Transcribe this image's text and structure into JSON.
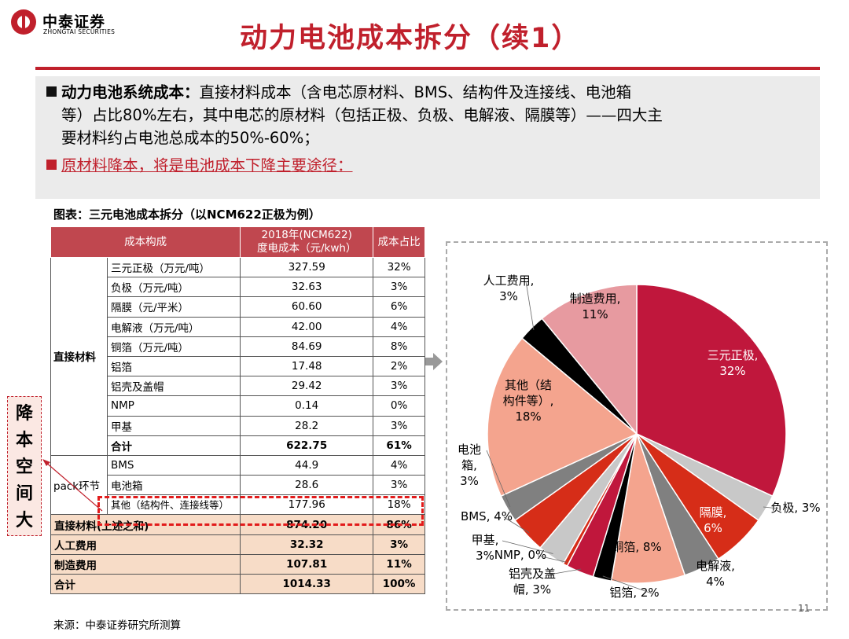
{
  "header": {
    "logo_cn": "中泰证券",
    "logo_en": "ZHONGTAI SECURITIES",
    "title": "动力电池成本拆分（续1）"
  },
  "summary": {
    "line1_bold": "动力电池系统成本：",
    "line1_rest": "直接材料成本（含电芯原材料、BMS、结构件及连接线、电池箱",
    "line2": "等）占比80%左右，其中电芯的原材料（包括正极、负极、电解液、隔膜等）——四大主",
    "line3": "要材料约占电池总成本的50%-60%；",
    "line4": "原材料降本，将是电池成本下降主要途径："
  },
  "table": {
    "caption": "图表：三元电池成本拆分（以NCM622正极为例）",
    "headers": [
      "成本构成",
      "2018年(NCM622)度电成本（元/kwh）",
      "成本占比"
    ],
    "header_col2_line1": "2018年(NCM622)",
    "header_col2_line2": "度电成本（元/kwh）",
    "group_direct": "直接材料",
    "group_pack": "pack环节",
    "direct_rows": [
      {
        "name": "三元正极（万元/吨）",
        "cost": "327.59",
        "pct": "32%"
      },
      {
        "name": "负极（万元/吨）",
        "cost": "32.63",
        "pct": "3%"
      },
      {
        "name": "隔膜（元/平米）",
        "cost": "60.60",
        "pct": "6%"
      },
      {
        "name": "电解液（万元/吨）",
        "cost": "42.00",
        "pct": "4%"
      },
      {
        "name": "铜箔（万元/吨）",
        "cost": "84.69",
        "pct": "8%"
      },
      {
        "name": "铝箔",
        "cost": "17.48",
        "pct": "2%"
      },
      {
        "name": "铝壳及盖帽",
        "cost": "29.42",
        "pct": "3%"
      },
      {
        "name": "NMP",
        "cost": "0.14",
        "pct": "0%"
      },
      {
        "name": "甲基",
        "cost": "28.2",
        "pct": "3%"
      },
      {
        "name": "合计",
        "cost": "622.75",
        "pct": "61%"
      }
    ],
    "pack_rows": [
      {
        "name": "BMS",
        "cost": "44.9",
        "pct": "4%"
      },
      {
        "name": "电池箱",
        "cost": "28.6",
        "pct": "3%"
      },
      {
        "name": "其他（结构件、连接线等）",
        "cost": "177.96",
        "pct": "18%"
      }
    ],
    "summary_rows": [
      {
        "name": "直接材料(上述之和)",
        "cost": "874.20",
        "pct": "86%"
      },
      {
        "name": "人工费用",
        "cost": "32.32",
        "pct": "3%"
      },
      {
        "name": "制造费用",
        "cost": "107.81",
        "pct": "11%"
      },
      {
        "name": "合计",
        "cost": "1014.33",
        "pct": "100%"
      }
    ]
  },
  "callout": "降本空间大",
  "source": "来源：中泰证券研究所测算",
  "page_number": "11",
  "colors": {
    "brand_red": "#c0202c",
    "header_fill": "#c0474f",
    "sum_fill": "#f7dcc7"
  },
  "chart_data": {
    "type": "pie",
    "title": "",
    "slices": [
      {
        "label": "三元正极",
        "value": 32,
        "color": "#c0173c",
        "text": "三元正极,",
        "pct_text": "32%"
      },
      {
        "label": "负极",
        "value": 3,
        "color": "#c8c8c8",
        "text": "负极,",
        "pct_text": "3%"
      },
      {
        "label": "隔膜",
        "value": 6,
        "color": "#d62d18",
        "text": "隔膜,",
        "pct_text": "6%"
      },
      {
        "label": "电解液",
        "value": 4,
        "color": "#808080",
        "text": "电解液,",
        "pct_text": "4%"
      },
      {
        "label": "铜箔",
        "value": 8,
        "color": "#f4a48e",
        "text": "铜箔,",
        "pct_text": "8%"
      },
      {
        "label": "铝箔",
        "value": 2,
        "color": "#000000",
        "text": "铝箔,",
        "pct_text": "2%"
      },
      {
        "label": "铝壳及盖帽",
        "value": 3,
        "color": "#c0173c",
        "text": "铝壳及盖",
        "text2": "帽,",
        "pct_text": "3%"
      },
      {
        "label": "NMP",
        "value": 0.5,
        "color": "#d62d18",
        "text": "NMP,",
        "pct_text": "0%"
      },
      {
        "label": "甲基",
        "value": 3,
        "color": "#c8c8c8",
        "text": "甲基,",
        "pct_text": "3%"
      },
      {
        "label": "BMS",
        "value": 4,
        "color": "#d62d18",
        "text": "BMS,",
        "pct_text": "4%"
      },
      {
        "label": "电池箱",
        "value": 3,
        "color": "#808080",
        "text": "电池",
        "text2": "箱,",
        "pct_text": "3%"
      },
      {
        "label": "其他（结构件等）",
        "value": 18,
        "color": "#f4a48e",
        "text": "其他（结",
        "text2": "构件等）,",
        "pct_text": "18%"
      },
      {
        "label": "人工费用",
        "value": 3,
        "color": "#000000",
        "text": "人工费用,",
        "pct_text": "3%"
      },
      {
        "label": "制造费用",
        "value": 11,
        "color": "#e79aa0",
        "text": "制造费用,",
        "pct_text": "11%"
      }
    ]
  }
}
